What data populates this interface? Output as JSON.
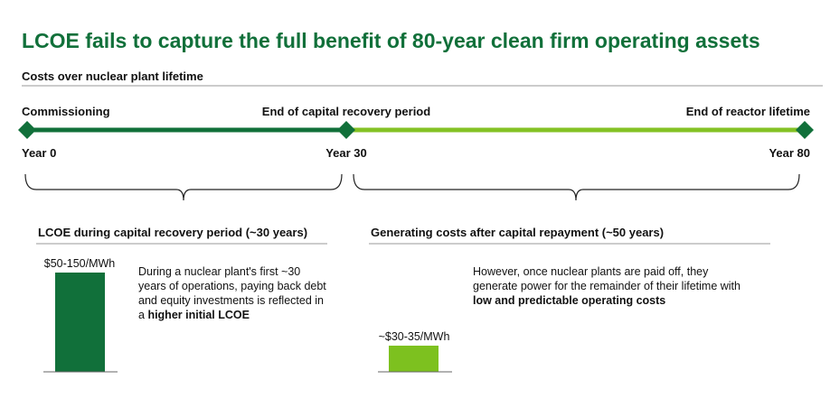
{
  "title": "LCOE fails to capture the full benefit of 80-year clean firm operating assets",
  "subtitle": "Costs over nuclear plant lifetime",
  "timeline": {
    "milestones": [
      {
        "label": "Commissioning",
        "year": "Year 0"
      },
      {
        "label": "End of capital recovery period",
        "year": "Year 30"
      },
      {
        "label": "End of reactor lifetime",
        "year": "Year 80"
      }
    ]
  },
  "sections": [
    {
      "heading": "LCOE during capital recovery period (~30 years)",
      "bar_label": "$50-150/MWh",
      "text": [
        "During a nuclear plant's first ~30 years of operations, paying back debt and equity investments is reflected in a ",
        "higher initial LCOE"
      ]
    },
    {
      "heading": "Generating costs after capital repayment (~50 years)",
      "bar_label": "~$30-35/MWh",
      "text": [
        "However, once nuclear plants are paid off, they generate power for the remainder of their lifetime with ",
        "low and predictable operating costs"
      ]
    }
  ]
}
